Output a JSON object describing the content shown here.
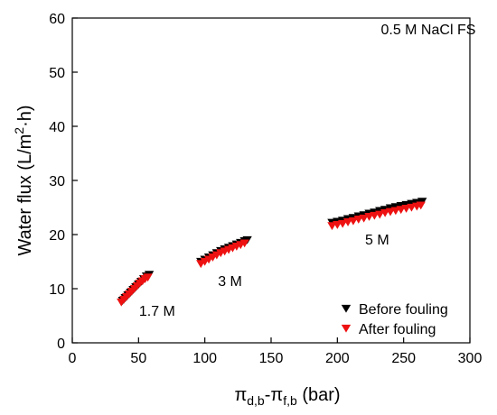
{
  "chart_data": {
    "type": "scatter",
    "title": "",
    "xlabel": {
      "main": "π",
      "sub1": "d,b",
      "mid": "-π",
      "sub2": "f,b",
      "tail": " (bar)"
    },
    "ylabel": {
      "main": "Water flux (L/m",
      "sup": "2",
      "tail": "·h)"
    },
    "xlim": [
      0,
      300
    ],
    "ylim": [
      0,
      60
    ],
    "xticks": [
      0,
      50,
      100,
      150,
      200,
      250,
      300
    ],
    "yticks": [
      0,
      10,
      20,
      30,
      40,
      50,
      60
    ],
    "grid": false,
    "legend_position": "bottom-right",
    "annotations": [
      {
        "text": "0.5 M NaCl FS",
        "x": 258,
        "y": 58
      },
      {
        "text": "1.7 M",
        "x": 64,
        "y": 6
      },
      {
        "text": "3 M",
        "x": 119,
        "y": 11.5
      },
      {
        "text": "5 M",
        "x": 230,
        "y": 19.2
      }
    ],
    "series": [
      {
        "name": "Before fouling",
        "color": "#000000",
        "marker": "triangle-down",
        "points": [
          [
            38,
            7.8
          ],
          [
            40,
            8.3
          ],
          [
            42,
            8.8
          ],
          [
            44,
            9.3
          ],
          [
            46,
            9.8
          ],
          [
            48,
            10.3
          ],
          [
            50,
            10.8
          ],
          [
            52,
            11.3
          ],
          [
            54,
            11.8
          ],
          [
            56,
            12.3
          ],
          [
            58,
            12.6
          ],
          [
            97,
            15.0
          ],
          [
            100,
            15.4
          ],
          [
            103,
            15.8
          ],
          [
            106,
            16.2
          ],
          [
            109,
            16.6
          ],
          [
            112,
            17.0
          ],
          [
            115,
            17.3
          ],
          [
            118,
            17.6
          ],
          [
            121,
            17.9
          ],
          [
            124,
            18.2
          ],
          [
            127,
            18.5
          ],
          [
            130,
            18.8
          ],
          [
            132,
            19.0
          ],
          [
            196,
            22.2
          ],
          [
            200,
            22.4
          ],
          [
            204,
            22.6
          ],
          [
            208,
            22.9
          ],
          [
            212,
            23.1
          ],
          [
            216,
            23.4
          ],
          [
            220,
            23.6
          ],
          [
            224,
            23.9
          ],
          [
            228,
            24.1
          ],
          [
            232,
            24.4
          ],
          [
            236,
            24.6
          ],
          [
            240,
            24.9
          ],
          [
            244,
            25.1
          ],
          [
            248,
            25.3
          ],
          [
            252,
            25.5
          ],
          [
            256,
            25.7
          ],
          [
            260,
            25.9
          ],
          [
            264,
            26.1
          ]
        ]
      },
      {
        "name": "After fouling",
        "color": "#ee1111",
        "marker": "triangle-down",
        "points": [
          [
            37,
            7.5
          ],
          [
            39,
            8.0
          ],
          [
            41,
            8.5
          ],
          [
            43,
            9.0
          ],
          [
            45,
            9.5
          ],
          [
            47,
            10.0
          ],
          [
            49,
            10.5
          ],
          [
            51,
            11.0
          ],
          [
            53,
            11.4
          ],
          [
            55,
            11.8
          ],
          [
            57,
            12.1
          ],
          [
            97,
            14.6
          ],
          [
            100,
            15.0
          ],
          [
            103,
            15.4
          ],
          [
            106,
            15.8
          ],
          [
            109,
            16.2
          ],
          [
            112,
            16.6
          ],
          [
            115,
            16.9
          ],
          [
            118,
            17.2
          ],
          [
            121,
            17.5
          ],
          [
            124,
            17.8
          ],
          [
            127,
            18.1
          ],
          [
            130,
            18.4
          ],
          [
            196,
            21.6
          ],
          [
            200,
            21.8
          ],
          [
            204,
            22.0
          ],
          [
            208,
            22.3
          ],
          [
            212,
            22.5
          ],
          [
            216,
            22.8
          ],
          [
            220,
            23.0
          ],
          [
            224,
            23.3
          ],
          [
            228,
            23.5
          ],
          [
            232,
            23.7
          ],
          [
            236,
            24.0
          ],
          [
            240,
            24.2
          ],
          [
            244,
            24.4
          ],
          [
            248,
            24.6
          ],
          [
            252,
            24.8
          ],
          [
            256,
            25.0
          ],
          [
            260,
            25.2
          ],
          [
            263,
            25.4
          ]
        ]
      }
    ]
  }
}
